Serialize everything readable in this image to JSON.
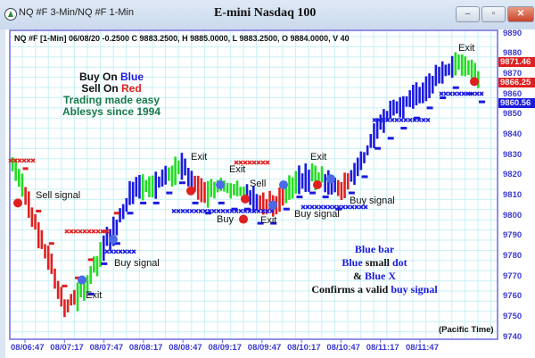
{
  "window": {
    "title": "NQ #F 3-Min/NQ #F 1-Min",
    "minimize": "–",
    "maximize": "▫",
    "close": "✕"
  },
  "chart_data": {
    "type": "bar",
    "title": "E-mini Nasdaq 100",
    "info_line": "NQ #F [1-Min] 06/08/20  -0.2500 C 9883.2500, H 9885.0000, L 9883.2500, O 9884.0000, V 40",
    "ylim": [
      9740,
      9890
    ],
    "y_ticks": [
      9890,
      9880,
      9870,
      9860,
      9850,
      9840,
      9830,
      9820,
      9810,
      9800,
      9790,
      9780,
      9770,
      9760,
      9750,
      9740
    ],
    "x_ticks": [
      "08/06:47",
      "08/07:17",
      "08/07:47",
      "08/08:17",
      "08/08:47",
      "08/09:17",
      "08/09:47",
      "08/10:17",
      "08/10:47",
      "08/11:17",
      "08/11:47"
    ],
    "x_label_note": "(Pacific Time)",
    "grid": true,
    "closes": [
      9825,
      9810,
      9790,
      9775,
      9755,
      9760,
      9770,
      9785,
      9795,
      9810,
      9815,
      9815,
      9820,
      9825,
      9815,
      9810,
      9815,
      9812,
      9812,
      9805,
      9805,
      9812,
      9818,
      9820,
      9818,
      9812,
      9820,
      9828,
      9845,
      9850,
      9855,
      9860,
      9865,
      9870,
      9875,
      9872,
      9868
    ],
    "bar_colors": [
      "g",
      "r",
      "r",
      "r",
      "r",
      "g",
      "g",
      "b",
      "b",
      "b",
      "g",
      "b",
      "g",
      "b",
      "r",
      "g",
      "g",
      "g",
      "b",
      "r",
      "r",
      "g",
      "b",
      "g",
      "b",
      "r",
      "b",
      "b",
      "b",
      "b",
      "b",
      "b",
      "b",
      "b",
      "g",
      "g",
      "r"
    ],
    "price_tags": [
      {
        "value": "9871.46",
        "color": "#e02020"
      },
      {
        "value": "9866.25",
        "color": "#e02020"
      },
      {
        "value": "9860.56",
        "color": "#1a1ae0"
      }
    ],
    "colors": {
      "up_signal": "#1a1ae0",
      "down_signal": "#e02020",
      "neutral": "#22dd22"
    }
  },
  "legend": {
    "buy_on": "Buy On ",
    "buy_color_word": "Blue",
    "sell_on": "Sell On ",
    "sell_color_word": "Red",
    "line3": "Trading made easy",
    "line4": "Ablesys since 1994"
  },
  "annotations": {
    "sell_signal": "Sell signal",
    "exit1": "Exit",
    "buy_signal1": "Buy signal",
    "exit2": "Exit",
    "exit3": "Exit",
    "buy": "Buy",
    "sell": "Sell",
    "exit4": "Exit",
    "buy_signal2": "Buy signal",
    "exit5": "Exit",
    "buy_signal3": "Buy signal",
    "exit6": "Exit"
  },
  "note": {
    "l1": "Blue bar",
    "l2a": "Blue",
    "l2b": " small ",
    "l2c": "dot",
    "l3a": "& ",
    "l3b": "Blue X",
    "l4a": "Confirms a valid ",
    "l4b": "buy signal"
  }
}
